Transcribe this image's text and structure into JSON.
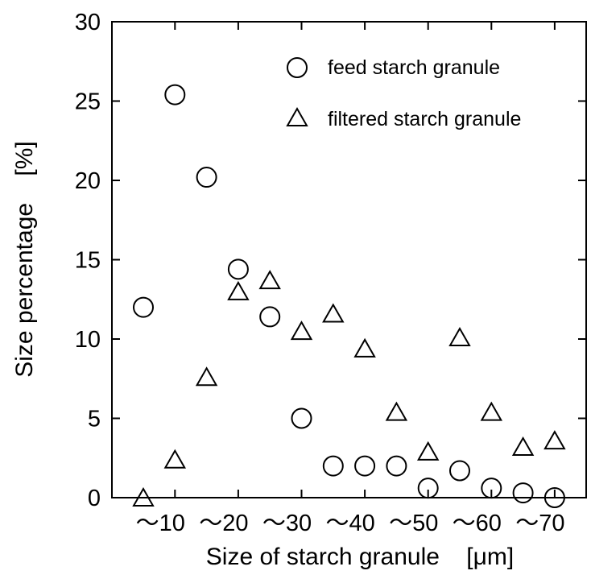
{
  "chart_data": {
    "type": "scatter",
    "xlabel": "Size of starch granule    [μm]",
    "ylabel": "Size percentage    [%]",
    "xlim": [
      0,
      14
    ],
    "ylim": [
      0,
      30
    ],
    "yticks": [
      0,
      5,
      10,
      15,
      20,
      25,
      30
    ],
    "xtick_labels": [
      "～10",
      "～20",
      "～30",
      "～40",
      "～50",
      "～60",
      "～70"
    ],
    "xtick_positions": [
      1,
      3,
      5,
      7,
      9,
      11,
      13
    ],
    "legend_position": "top-right",
    "series": [
      {
        "name": "feed starch granule",
        "marker": "circle",
        "points": [
          [
            0,
            12.0
          ],
          [
            1,
            25.4
          ],
          [
            2,
            20.2
          ],
          [
            3,
            14.4
          ],
          [
            4,
            11.4
          ],
          [
            5,
            5.0
          ],
          [
            6,
            2.0
          ],
          [
            7,
            2.0
          ],
          [
            8,
            2.0
          ],
          [
            9,
            0.6
          ],
          [
            10,
            1.7
          ],
          [
            11,
            0.6
          ],
          [
            12,
            0.3
          ],
          [
            13,
            0.0
          ]
        ]
      },
      {
        "name": "filtered starch granule",
        "marker": "triangle",
        "points": [
          [
            0,
            0.0
          ],
          [
            1,
            2.4
          ],
          [
            2,
            7.6
          ],
          [
            3,
            13.0
          ],
          [
            4,
            13.7
          ],
          [
            5,
            10.5
          ],
          [
            6,
            11.6
          ],
          [
            7,
            9.4
          ],
          [
            8,
            5.4
          ],
          [
            9,
            2.9
          ],
          [
            10,
            10.1
          ],
          [
            11,
            5.4
          ],
          [
            12,
            3.2
          ],
          [
            13,
            3.6
          ]
        ]
      }
    ]
  }
}
